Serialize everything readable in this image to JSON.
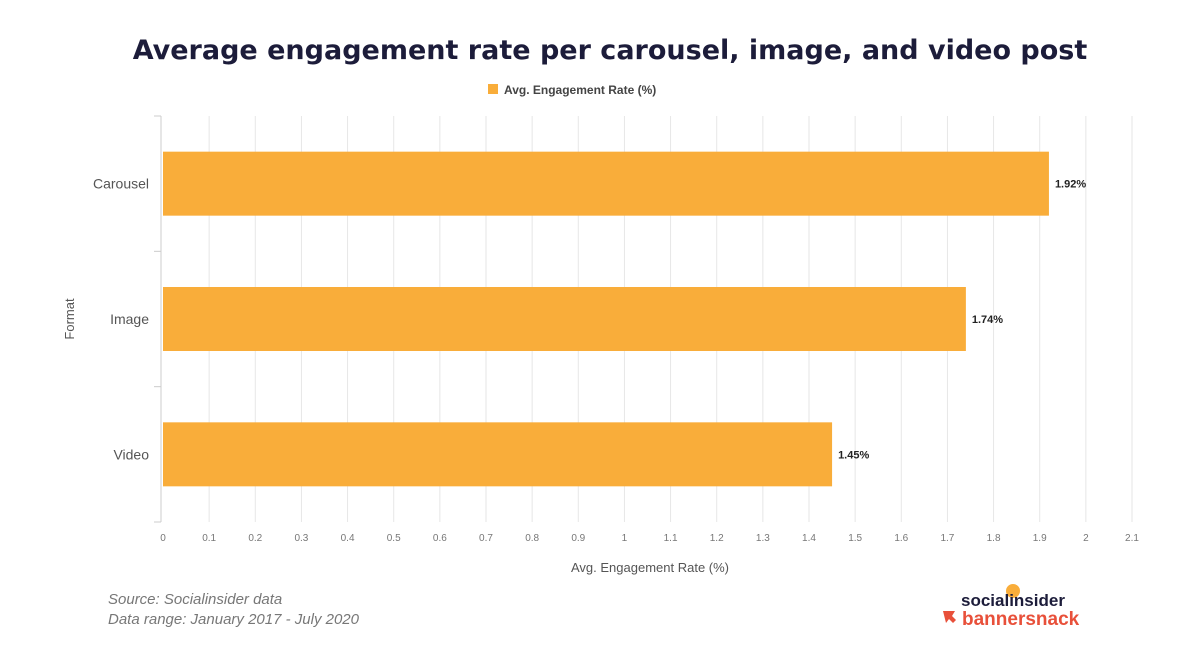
{
  "chart_data": {
    "type": "bar",
    "orientation": "horizontal",
    "title": "Average engagement rate per carousel, image, and video post",
    "xlabel": "Avg. Engagement Rate (%)",
    "ylabel": "Format",
    "categories": [
      "Carousel",
      "Image",
      "Video"
    ],
    "series": [
      {
        "name": "Avg. Engagement Rate (%)",
        "values": [
          1.92,
          1.74,
          1.45
        ],
        "labels": [
          "1.92%",
          "1.74%",
          "1.45%"
        ],
        "color": "#f9ad3a"
      }
    ],
    "xlim": [
      0,
      2.1
    ],
    "xticks": [
      "0",
      "0.1",
      "0.2",
      "0.3",
      "0.4",
      "0.5",
      "0.6",
      "0.7",
      "0.8",
      "0.9",
      "1",
      "1.1",
      "1.2",
      "1.3",
      "1.4",
      "1.5",
      "1.6",
      "1.7",
      "1.8",
      "1.9",
      "2",
      "2.1"
    ],
    "grid": true,
    "legend": "top"
  },
  "footer": {
    "source": "Source: Socialinsider data",
    "range": "Data range: January 2017 - July 2020"
  },
  "logos": {
    "top": "socialinsider",
    "bottom": "bannersnack",
    "top_color": "#1c1c3a",
    "bottom_color": "#e8503a"
  }
}
